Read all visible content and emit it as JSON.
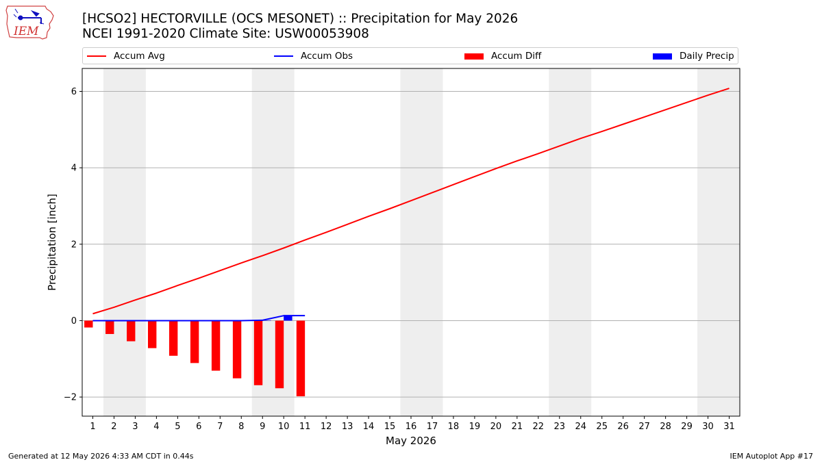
{
  "header": {
    "title_line1": "[HCSO2] HECTORVILLE (OCS MESONET) :: Precipitation for May 2026",
    "title_line2": "NCEI 1991-2020 Climate Site: USW00053908"
  },
  "logo": {
    "text": "IEM",
    "icon": "iowa-state-outline-logo"
  },
  "footer": {
    "left": "Generated at 12 May 2026 4:33 AM CDT in 0.44s",
    "right": "IEM Autoplot App #17"
  },
  "legend": {
    "placement": "top",
    "items": [
      {
        "label": "Accum Avg",
        "kind": "line",
        "color": "#ff0000"
      },
      {
        "label": "Accum Obs",
        "kind": "line",
        "color": "#0000ff"
      },
      {
        "label": "Accum Diff",
        "kind": "bar",
        "color": "#ff0000"
      },
      {
        "label": "Daily Precip",
        "kind": "bar",
        "color": "#0000ff"
      }
    ]
  },
  "chart_data": {
    "type": "bar",
    "title": "[HCSO2] HECTORVILLE (OCS MESONET) :: Precipitation for May 2026",
    "subtitle": "NCEI 1991-2020 Climate Site: USW00053908",
    "xlabel": "May 2026",
    "ylabel": "Precipitation [inch]",
    "xlim": [
      0.5,
      31.5
    ],
    "ylim": [
      -2.5,
      6.6
    ],
    "yticks": [
      -2,
      0,
      2,
      4,
      6
    ],
    "ytick_labels": [
      "−2",
      "0",
      "2",
      "4",
      "6"
    ],
    "x": [
      1,
      2,
      3,
      4,
      5,
      6,
      7,
      8,
      9,
      10,
      11,
      12,
      13,
      14,
      15,
      16,
      17,
      18,
      19,
      20,
      21,
      22,
      23,
      24,
      25,
      26,
      27,
      28,
      29,
      30,
      31
    ],
    "grid": "y",
    "weekend_shading": [
      [
        1.5,
        3.5
      ],
      [
        8.5,
        10.5
      ],
      [
        15.5,
        17.5
      ],
      [
        22.5,
        24.5
      ],
      [
        29.5,
        31.5
      ]
    ],
    "shading_color": "#eeeeee",
    "series": [
      {
        "name": "Accum Avg",
        "type": "line",
        "color": "#ff0000",
        "x": [
          1,
          2,
          3,
          4,
          5,
          6,
          7,
          8,
          9,
          10,
          11,
          12,
          13,
          14,
          15,
          16,
          17,
          18,
          19,
          20,
          21,
          22,
          23,
          24,
          25,
          26,
          27,
          28,
          29,
          30,
          31
        ],
        "values": [
          0.18,
          0.35,
          0.54,
          0.72,
          0.92,
          1.11,
          1.31,
          1.51,
          1.7,
          1.9,
          2.11,
          2.31,
          2.52,
          2.73,
          2.93,
          3.14,
          3.35,
          3.56,
          3.77,
          3.98,
          4.18,
          4.37,
          4.57,
          4.77,
          4.95,
          5.14,
          5.33,
          5.52,
          5.71,
          5.9,
          6.08
        ]
      },
      {
        "name": "Accum Obs",
        "type": "line",
        "color": "#0000ff",
        "x": [
          1,
          2,
          3,
          4,
          5,
          6,
          7,
          8,
          9,
          10,
          11
        ],
        "values": [
          0,
          0,
          0,
          0,
          0,
          0,
          0,
          0,
          0.01,
          0.13,
          0.13
        ]
      },
      {
        "name": "Accum Diff",
        "type": "bar",
        "color": "#ff0000",
        "offset": -0.2,
        "x": [
          1,
          2,
          3,
          4,
          5,
          6,
          7,
          8,
          9,
          10,
          11
        ],
        "values": [
          -0.18,
          -0.35,
          -0.54,
          -0.72,
          -0.92,
          -1.11,
          -1.31,
          -1.51,
          -1.69,
          -1.77,
          -1.98
        ]
      },
      {
        "name": "Daily Precip",
        "type": "bar",
        "color": "#0000ff",
        "offset": 0.2,
        "x": [
          1,
          2,
          3,
          4,
          5,
          6,
          7,
          8,
          9,
          10,
          11
        ],
        "values": [
          0,
          0,
          0,
          0,
          0,
          0,
          0,
          0,
          0.01,
          0.12,
          0
        ]
      }
    ]
  }
}
